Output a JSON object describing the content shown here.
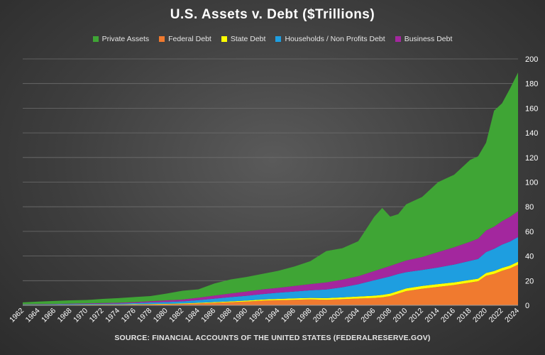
{
  "chart_data": {
    "type": "area",
    "stacked": true,
    "title": "U.S. Assets v. Debt ($Trillions)",
    "source": "SOURCE: FINANCIAL ACCOUNTS OF THE UNITED STATES (FEDERALRESERVE.GOV)",
    "xlabel": "",
    "ylabel": "",
    "ylim": [
      0,
      200
    ],
    "yticks": [
      0,
      20,
      40,
      60,
      80,
      100,
      120,
      140,
      160,
      180,
      200
    ],
    "y_axis_position": "right",
    "grid": true,
    "legend_position": "top",
    "x": [
      1962,
      1964,
      1966,
      1968,
      1970,
      1972,
      1974,
      1976,
      1978,
      1980,
      1982,
      1984,
      1986,
      1988,
      1990,
      1992,
      1994,
      1996,
      1998,
      2000,
      2002,
      2004,
      2006,
      2007,
      2008,
      2009,
      2010,
      2012,
      2014,
      2016,
      2018,
      2019,
      2020,
      2021,
      2022,
      2023,
      2024
    ],
    "xtick_labels": [
      "1962",
      "1964",
      "1966",
      "1968",
      "1970",
      "1972",
      "1974",
      "1976",
      "1978",
      "1980",
      "1982",
      "1984",
      "1986",
      "1988",
      "1990",
      "1992",
      "1994",
      "1996",
      "1998",
      "2000",
      "2002",
      "2004",
      "2006",
      "2008",
      "2010",
      "2012",
      "2014",
      "2016",
      "2018",
      "2020",
      "2022",
      "2024"
    ],
    "series": [
      {
        "name": "Federal Debt",
        "color": "#f07a2f",
        "values": [
          0.3,
          0.3,
          0.3,
          0.4,
          0.4,
          0.5,
          0.5,
          0.6,
          0.8,
          0.9,
          1.1,
          1.5,
          2.0,
          2.5,
          3.0,
          3.8,
          4.2,
          4.5,
          4.8,
          4.5,
          5.0,
          5.5,
          6.0,
          6.5,
          7.5,
          9.5,
          11.5,
          13.5,
          15.0,
          16.5,
          18.5,
          19.5,
          24.0,
          25.5,
          28.0,
          30.0,
          33.0
        ]
      },
      {
        "name": "State Debt",
        "color": "#ffff00",
        "values": [
          0.1,
          0.1,
          0.1,
          0.1,
          0.2,
          0.2,
          0.2,
          0.3,
          0.3,
          0.3,
          0.4,
          0.5,
          0.6,
          0.7,
          0.8,
          0.9,
          1.0,
          1.1,
          1.2,
          1.3,
          1.4,
          1.6,
          1.8,
          1.9,
          2.0,
          2.1,
          2.2,
          2.2,
          2.2,
          2.1,
          2.1,
          2.1,
          2.2,
          2.3,
          2.3,
          2.3,
          2.4
        ]
      },
      {
        "name": "Households / Non Profits Debt",
        "color": "#1e9ee0",
        "values": [
          0.3,
          0.3,
          0.4,
          0.5,
          0.5,
          0.6,
          0.7,
          0.9,
          1.2,
          1.5,
          1.7,
          2.2,
          2.8,
          3.4,
          3.9,
          4.4,
          5.0,
          5.6,
          6.2,
          7.0,
          8.2,
          10.0,
          12.5,
          13.5,
          14.0,
          13.8,
          13.2,
          13.0,
          13.5,
          14.5,
          15.5,
          16.0,
          17.0,
          18.0,
          19.0,
          19.5,
          20.0
        ]
      },
      {
        "name": "Business Debt",
        "color": "#a3279e",
        "values": [
          0.2,
          0.3,
          0.3,
          0.4,
          0.5,
          0.6,
          0.7,
          0.8,
          1.0,
          1.3,
          1.5,
          2.0,
          2.5,
          3.0,
          3.5,
          3.8,
          4.0,
          4.5,
          5.0,
          5.8,
          6.2,
          6.5,
          7.5,
          8.0,
          8.5,
          8.8,
          9.5,
          10.5,
          12.5,
          14.0,
          15.5,
          16.5,
          17.5,
          18.0,
          19.0,
          20.0,
          21.0
        ]
      },
      {
        "name": "Private Assets",
        "color": "#3fa535",
        "values": [
          1.5,
          2.0,
          2.4,
          2.6,
          2.7,
          3.3,
          3.7,
          4.1,
          4.2,
          5.5,
          7.1,
          6.8,
          9.8,
          11.4,
          11.8,
          12.6,
          13.8,
          15.8,
          18.6,
          25.4,
          25.5,
          28.4,
          44.0,
          49.1,
          40.0,
          39.8,
          45.6,
          48.8,
          56.8,
          58.9,
          66.4,
          66.9,
          71.3,
          94.2,
          95.7,
          104.2,
          112.6
        ]
      }
    ]
  }
}
